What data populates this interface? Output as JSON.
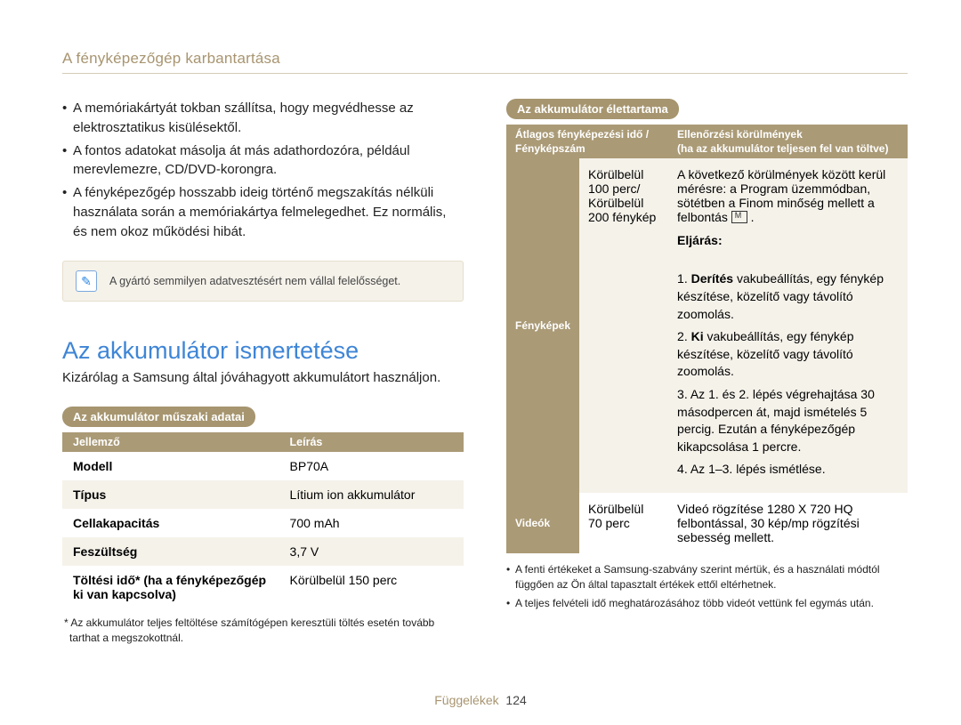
{
  "breadcrumb": "A fényképezőgép karbantartása",
  "left": {
    "bullets": [
      "A memóriakártyát tokban szállítsa, hogy megvédhesse az elektrosztatikus kisülésektől.",
      "A fontos adatokat másolja át más adathordozóra, például merevlemezre, CD/DVD-korongra.",
      "A fényképezőgép hosszabb ideig történő megszakítás nélküli használata során a memóriakártya felmelegedhet. Ez normális, és nem okoz működési hibát."
    ],
    "note_text": "A gyártó semmilyen adatvesztésért nem vállal felelősséget.",
    "section_title": "Az akkumulátor ismertetése",
    "lead": "Kizárólag a Samsung által jóváhagyott akkumulátort használjon.",
    "spec_pill": "Az akkumulátor műszaki adatai",
    "spec_head_k": "Jellemző",
    "spec_head_v": "Leírás",
    "spec_rows": [
      {
        "k": "Modell",
        "v": "BP70A"
      },
      {
        "k": "Típus",
        "v": "Lítium ion akkumulátor"
      },
      {
        "k": "Cellakapacitás",
        "v": "700 mAh"
      },
      {
        "k": "Feszültség",
        "v": "3,7 V"
      },
      {
        "k": "Töltési idő* (ha a fényképezőgép ki van kapcsolva)",
        "v": "Körülbelül 150 perc"
      }
    ],
    "spec_footnote": "* Az akkumulátor teljes feltöltése számítógépen keresztüli töltés esetén tovább tarthat a megszokottnál."
  },
  "right": {
    "life_pill": "Az akkumulátor élettartama",
    "head_left": "Átlagos fényképezési idő / Fényképszám",
    "head_right": "Ellenőrzési körülmények\n(ha az akkumulátor teljesen fel van töltve)",
    "cond_intro": "A következő körülmények között kerül mérésre: a Program üzemmódban, sötétben a Finom minőség mellett a felbontás ",
    "proc_title": "Eljárás:",
    "row_photos_label": "Fényképek",
    "row_photos_mid": "Körülbelül 100 perc/ Körülbelül 200 fénykép",
    "steps": [
      {
        "pre": "1. ",
        "b": "Derítés",
        "post": " vakubeállítás, egy fénykép készítése, közelítő vagy távolító zoomolás."
      },
      {
        "pre": "2. ",
        "b": "Ki",
        "post": " vakubeállítás, egy fénykép készítése, közelítő vagy távolító zoomolás."
      },
      {
        "pre": "3. ",
        "b": "",
        "post": "Az 1. és 2. lépés végrehajtása 30 másodpercen át, majd ismételés 5 percig. Ezután a fényképezőgép kikapcsolása 1 percre."
      },
      {
        "pre": "4. ",
        "b": "",
        "post": "Az 1–3. lépés ismétlése."
      }
    ],
    "row_videos_label": "Videók",
    "row_videos_mid": "Körülbelül 70 perc",
    "row_videos_right": "Videó rögzítése 1280 X 720 HQ felbontással, 30 kép/mp rögzítési sebesség mellett.",
    "notes": [
      "A fenti értékeket a Samsung-szabvány szerint mértük, és a használati módtól függően az Ön által tapasztalt értékek ettől eltérhetnek.",
      "A teljes felvételi idő meghatározásához több videót vettünk fel egymás után."
    ]
  },
  "footer": {
    "appendix": "Függelékek",
    "page": "124"
  }
}
